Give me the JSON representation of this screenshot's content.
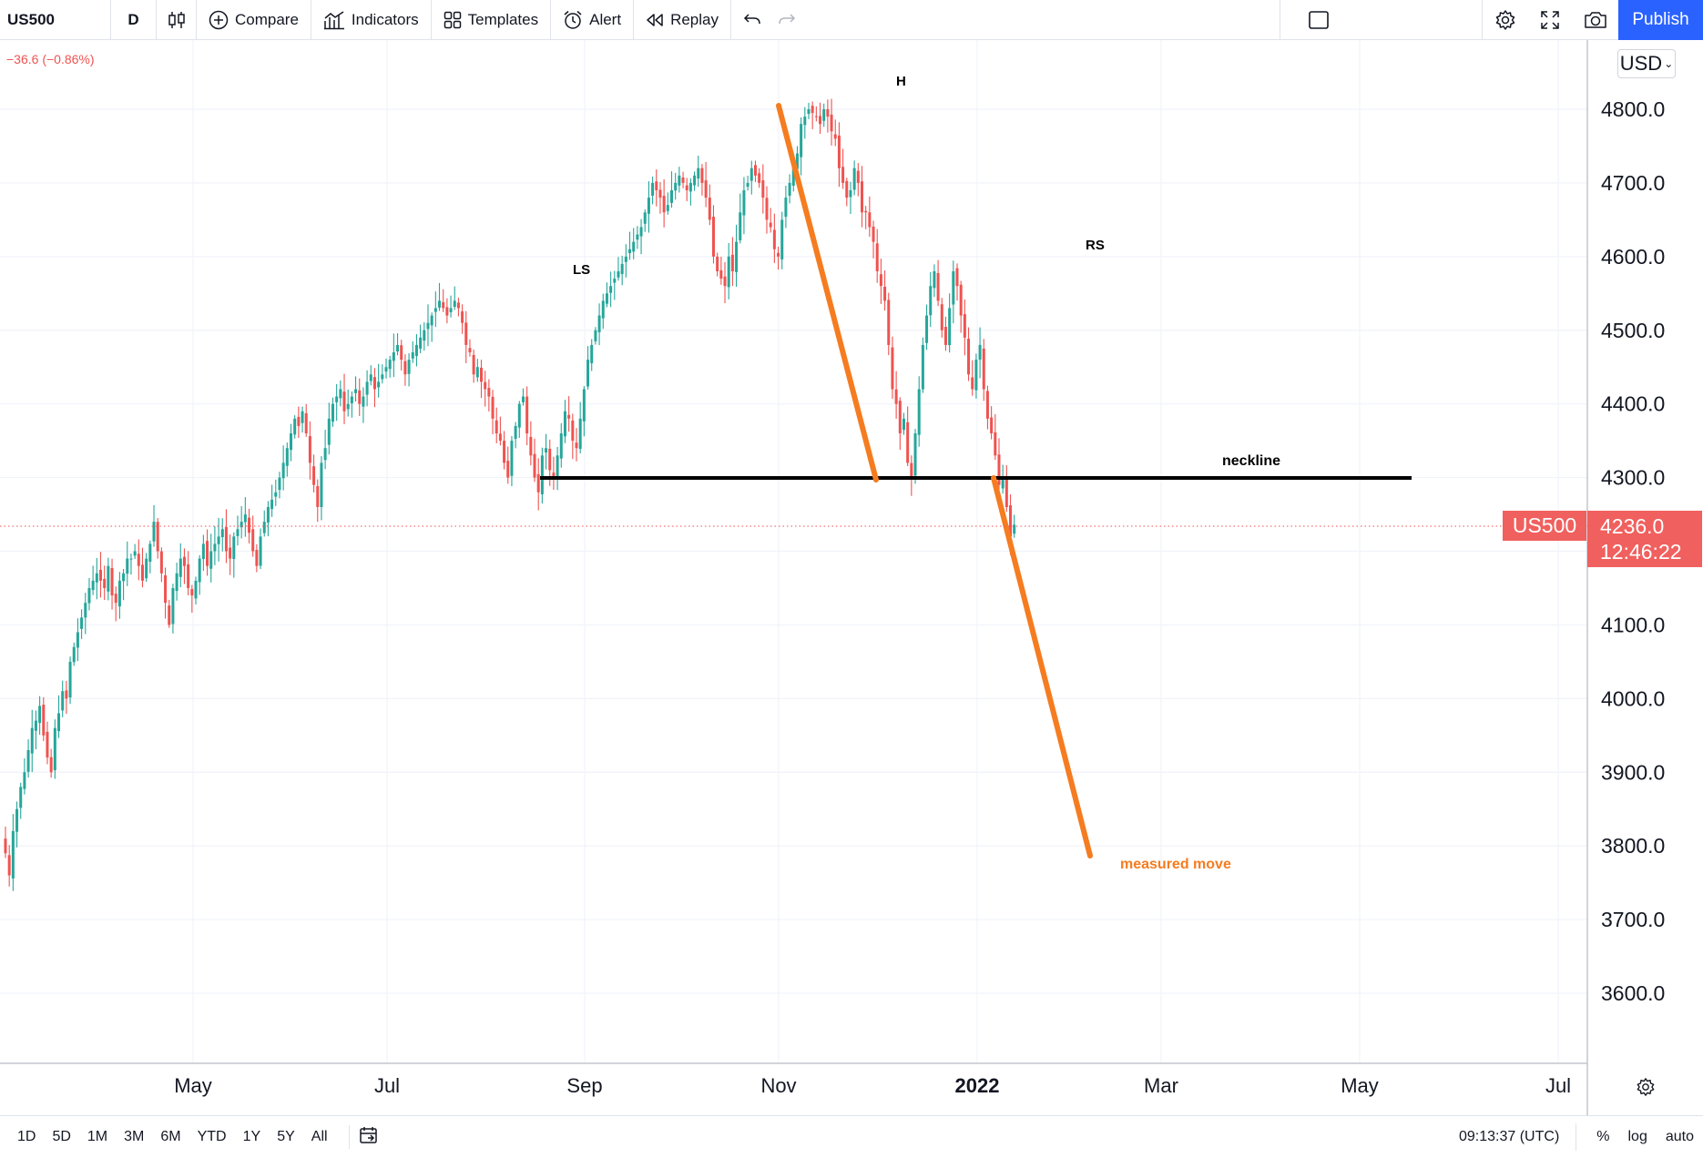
{
  "toolbar": {
    "symbol": "US500",
    "interval": "D",
    "chart_type_icon": "candles-icon",
    "compare": "Compare",
    "indicators": "Indicators",
    "templates": "Templates",
    "alert": "Alert",
    "replay": "Replay",
    "publish": "Publish"
  },
  "legend": {
    "change": "−36.6 (−0.86%)"
  },
  "price_scale": {
    "currency": "USD",
    "ticks": [
      "4800.0",
      "4700.0",
      "4600.0",
      "4500.0",
      "4400.0",
      "4300.0",
      "4100.0",
      "4000.0",
      "3900.0",
      "3800.0",
      "3700.0",
      "3600.0"
    ],
    "last_price": "4236.0",
    "countdown": "12:46:22",
    "symbol_tag": "US500"
  },
  "time_scale": {
    "ticks": [
      "May",
      "Jul",
      "Sep",
      "Nov",
      "2022",
      "Mar",
      "May",
      "Jul"
    ]
  },
  "annotations": {
    "ls": "LS",
    "h": "H",
    "rs": "RS",
    "neckline": "neckline",
    "measured_move": "measured move"
  },
  "bottom": {
    "ranges": [
      "1D",
      "5D",
      "1M",
      "3M",
      "6M",
      "YTD",
      "1Y",
      "5Y",
      "All"
    ],
    "clock": "09:13:37 (UTC)",
    "percent": "%",
    "log": "log",
    "auto": "auto"
  },
  "colors": {
    "up": "#26a69a",
    "down": "#ef5350",
    "accent": "#2962ff",
    "drawing": "#f57c20"
  },
  "chart_data": {
    "type": "candlestick",
    "y_range": [
      3510,
      4870
    ],
    "up_color": "#26a69a",
    "down_color": "#ef5350",
    "closes": [
      3790,
      3760,
      3820,
      3850,
      3880,
      3900,
      3930,
      3960,
      3970,
      3990,
      3950,
      3920,
      3900,
      3960,
      3980,
      4010,
      4000,
      4050,
      4070,
      4090,
      4110,
      4130,
      4150,
      4160,
      4170,
      4160,
      4150,
      4180,
      4140,
      4130,
      4160,
      4170,
      4190,
      4190,
      4200,
      4180,
      4160,
      4190,
      4210,
      4240,
      4200,
      4170,
      4130,
      4100,
      4150,
      4170,
      4190,
      4180,
      4150,
      4140,
      4160,
      4190,
      4210,
      4180,
      4200,
      4210,
      4220,
      4230,
      4200,
      4190,
      4220,
      4230,
      4240,
      4250,
      4225,
      4200,
      4180,
      4220,
      4240,
      4260,
      4270,
      4280,
      4300,
      4320,
      4340,
      4360,
      4380,
      4370,
      4390,
      4360,
      4320,
      4290,
      4260,
      4320,
      4340,
      4380,
      4400,
      4410,
      4420,
      4390,
      4400,
      4410,
      4420,
      4400,
      4410,
      4430,
      4440,
      4420,
      4430,
      4440,
      4450,
      4460,
      4470,
      4480,
      4460,
      4440,
      4460,
      4470,
      4480,
      4490,
      4500,
      4510,
      4520,
      4530,
      4540,
      4530,
      4520,
      4530,
      4540,
      4530,
      4510,
      4480,
      4470,
      4440,
      4450,
      4430,
      4420,
      4410,
      4380,
      4360,
      4350,
      4320,
      4300,
      4350,
      4370,
      4400,
      4410,
      4360,
      4330,
      4300,
      4280,
      4330,
      4340,
      4310,
      4300,
      4330,
      4360,
      4390,
      4380,
      4350,
      4340,
      4380,
      4420,
      4460,
      4480,
      4500,
      4520,
      4540,
      4550,
      4560,
      4570,
      4580,
      4590,
      4600,
      4610,
      4620,
      4630,
      4640,
      4660,
      4680,
      4700,
      4690,
      4680,
      4660,
      4670,
      4690,
      4700,
      4710,
      4700,
      4690,
      4700,
      4710,
      4720,
      4700,
      4680,
      4650,
      4600,
      4580,
      4570,
      4560,
      4600,
      4580,
      4620,
      4660,
      4690,
      4700,
      4720,
      4710,
      4700,
      4680,
      4650,
      4640,
      4610,
      4600,
      4650,
      4680,
      4700,
      4720,
      4740,
      4780,
      4790,
      4800,
      4795,
      4790,
      4780,
      4800,
      4790,
      4770,
      4760,
      4720,
      4700,
      4680,
      4690,
      4720,
      4700,
      4660,
      4660,
      4640,
      4620,
      4580,
      4560,
      4540,
      4480,
      4420,
      4400,
      4360,
      4380,
      4320,
      4300,
      4360,
      4420,
      4480,
      4520,
      4560,
      4580,
      4540,
      4500,
      4480,
      4530,
      4580,
      4560,
      4520,
      4490,
      4440,
      4420,
      4460,
      4480,
      4420,
      4380,
      4360,
      4330,
      4290,
      4300,
      4260,
      4220,
      4236
    ]
  }
}
